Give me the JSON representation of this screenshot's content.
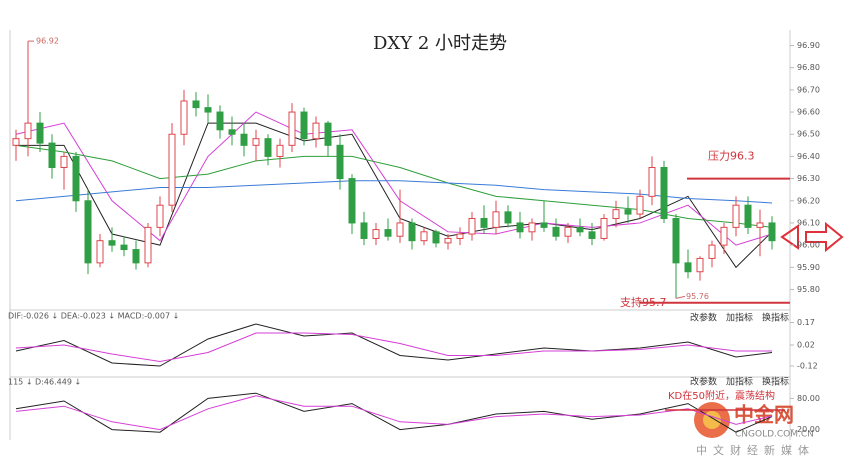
{
  "chart_data": {
    "type": "candlestick",
    "title": "DXY 2 小时走势",
    "up_color": "#e0474c",
    "down_color": "#2f9e44",
    "ylim": [
      95.73,
      96.97
    ],
    "yticks": [
      {
        "value": 96.9,
        "label": "96.90"
      },
      {
        "value": 96.8,
        "label": "96.80"
      },
      {
        "value": 96.7,
        "label": "96.70"
      },
      {
        "value": 96.6,
        "label": "96.60"
      },
      {
        "value": 96.5,
        "label": "96.50"
      },
      {
        "value": 96.4,
        "label": "96.40"
      },
      {
        "value": 96.3,
        "label": "96.30"
      },
      {
        "value": 96.2,
        "label": "96.20"
      },
      {
        "value": 96.1,
        "label": "96.10"
      },
      {
        "value": 96.0,
        "label": "96.00"
      },
      {
        "value": 95.9,
        "label": "95.90"
      },
      {
        "value": 95.8,
        "label": "95.80"
      }
    ],
    "ohlc": [
      [
        96.45,
        96.52,
        96.38,
        96.48
      ],
      [
        96.48,
        96.92,
        96.4,
        96.55
      ],
      [
        96.55,
        96.6,
        96.42,
        96.46
      ],
      [
        96.46,
        96.5,
        96.3,
        96.35
      ],
      [
        96.35,
        96.42,
        96.25,
        96.4
      ],
      [
        96.4,
        96.42,
        96.15,
        96.2
      ],
      [
        96.2,
        96.25,
        95.87,
        95.92
      ],
      [
        95.92,
        96.05,
        95.9,
        96.02
      ],
      [
        96.02,
        96.08,
        95.97,
        96.0
      ],
      [
        96.0,
        96.04,
        95.95,
        95.98
      ],
      [
        95.98,
        96.02,
        95.89,
        95.92
      ],
      [
        95.92,
        96.1,
        95.9,
        96.08
      ],
      [
        96.08,
        96.22,
        96.04,
        96.18
      ],
      [
        96.18,
        96.55,
        96.15,
        96.5
      ],
      [
        96.5,
        96.7,
        96.45,
        96.65
      ],
      [
        96.65,
        96.69,
        96.58,
        96.62
      ],
      [
        96.62,
        96.68,
        96.55,
        96.6
      ],
      [
        96.6,
        96.63,
        96.48,
        96.52
      ],
      [
        96.52,
        96.58,
        96.45,
        96.5
      ],
      [
        96.5,
        96.55,
        96.4,
        96.45
      ],
      [
        96.45,
        96.52,
        96.38,
        96.48
      ],
      [
        96.48,
        96.5,
        96.36,
        96.4
      ],
      [
        96.4,
        96.48,
        96.35,
        96.45
      ],
      [
        96.45,
        96.64,
        96.42,
        96.6
      ],
      [
        96.6,
        96.62,
        96.45,
        96.48
      ],
      [
        96.48,
        96.58,
        96.44,
        96.55
      ],
      [
        96.55,
        96.56,
        96.4,
        96.45
      ],
      [
        96.45,
        96.5,
        96.25,
        96.3
      ],
      [
        96.3,
        96.32,
        96.05,
        96.1
      ],
      [
        96.1,
        96.15,
        96.0,
        96.03
      ],
      [
        96.03,
        96.1,
        96.0,
        96.07
      ],
      [
        96.07,
        96.12,
        96.02,
        96.04
      ],
      [
        96.04,
        96.25,
        96.01,
        96.1
      ],
      [
        96.1,
        96.12,
        95.98,
        96.02
      ],
      [
        96.02,
        96.08,
        96.0,
        96.06
      ],
      [
        96.06,
        96.07,
        95.99,
        96.01
      ],
      [
        96.01,
        96.05,
        95.98,
        96.03
      ],
      [
        96.03,
        96.08,
        96.0,
        96.05
      ],
      [
        96.05,
        96.15,
        96.02,
        96.12
      ],
      [
        96.12,
        96.18,
        96.05,
        96.08
      ],
      [
        96.08,
        96.2,
        96.05,
        96.15
      ],
      [
        96.15,
        96.18,
        96.08,
        96.1
      ],
      [
        96.1,
        96.15,
        96.03,
        96.06
      ],
      [
        96.06,
        96.12,
        96.02,
        96.1
      ],
      [
        96.1,
        96.2,
        96.06,
        96.08
      ],
      [
        96.08,
        96.12,
        96.02,
        96.04
      ],
      [
        96.04,
        96.1,
        96.01,
        96.08
      ],
      [
        96.08,
        96.12,
        96.04,
        96.06
      ],
      [
        96.06,
        96.1,
        96.0,
        96.03
      ],
      [
        96.03,
        96.14,
        96.02,
        96.12
      ],
      [
        96.12,
        96.2,
        96.08,
        96.16
      ],
      [
        96.16,
        96.22,
        96.1,
        96.14
      ],
      [
        96.14,
        96.25,
        96.12,
        96.22
      ],
      [
        96.22,
        96.4,
        96.18,
        96.35
      ],
      [
        96.35,
        96.38,
        96.1,
        96.12
      ],
      [
        96.12,
        96.14,
        95.76,
        95.92
      ],
      [
        95.92,
        95.98,
        95.85,
        95.88
      ],
      [
        95.88,
        95.95,
        95.84,
        95.94
      ],
      [
        95.94,
        96.02,
        95.9,
        96.0
      ],
      [
        96.0,
        96.1,
        95.96,
        96.08
      ],
      [
        96.08,
        96.22,
        96.04,
        96.18
      ],
      [
        96.18,
        96.22,
        96.05,
        96.08
      ],
      [
        96.08,
        96.16,
        95.95,
        96.1
      ],
      [
        96.1,
        96.13,
        95.98,
        96.02
      ]
    ],
    "x": [
      0,
      4,
      8,
      12,
      16,
      20,
      24,
      28,
      32,
      36,
      40,
      44,
      48,
      52,
      56,
      60,
      63
    ],
    "series": [
      {
        "color": "#222222",
        "values": [
          96.45,
          96.45,
          96.05,
          96.0,
          96.55,
          96.55,
          96.47,
          96.5,
          96.12,
          96.04,
          96.08,
          96.1,
          96.07,
          96.12,
          96.22,
          95.9,
          96.06
        ]
      },
      {
        "color": "#d63fd6",
        "values": [
          96.5,
          96.55,
          96.2,
          96.02,
          96.4,
          96.6,
          96.5,
          96.52,
          96.2,
          96.06,
          96.05,
          96.1,
          96.08,
          96.1,
          96.18,
          96.0,
          96.05
        ]
      },
      {
        "color": "#2e9e3a",
        "values": [
          96.45,
          96.42,
          96.38,
          96.3,
          96.32,
          96.38,
          96.4,
          96.4,
          96.35,
          96.28,
          96.22,
          96.2,
          96.18,
          96.16,
          96.12,
          96.1,
          96.08
        ]
      },
      {
        "color": "#3b7bd8",
        "values": [
          96.2,
          96.22,
          96.24,
          96.26,
          96.26,
          96.27,
          96.28,
          96.29,
          96.29,
          96.28,
          96.27,
          96.25,
          96.24,
          96.23,
          96.21,
          96.2,
          96.19
        ]
      }
    ],
    "extremes": [
      96.92,
      95.76
    ],
    "levels": [
      {
        "label": "压力96.3",
        "value": 96.3
      },
      {
        "label": "支持95.7",
        "value": 95.74
      }
    ],
    "macd": {
      "header": "DIF:-0.026 ↓  DEA:-0.023 ↓  MACD:-0.007 ↓",
      "ylim": [
        -0.16,
        0.2
      ],
      "yticks": [
        {
          "value": 0.17,
          "label": "0.17"
        },
        {
          "value": 0.02,
          "label": "0.02"
        },
        {
          "value": -0.12,
          "label": "-0.12"
        }
      ],
      "series": [
        {
          "color": "#222222",
          "values": [
            -0.02,
            0.05,
            -0.1,
            -0.12,
            0.06,
            0.16,
            0.08,
            0.1,
            -0.05,
            -0.08,
            -0.04,
            0.0,
            -0.02,
            0.0,
            0.04,
            -0.06,
            -0.03
          ]
        },
        {
          "color": "#d63fd6",
          "values": [
            0.0,
            0.02,
            -0.04,
            -0.09,
            -0.03,
            0.1,
            0.1,
            0.09,
            0.03,
            -0.05,
            -0.05,
            -0.02,
            -0.02,
            -0.01,
            0.02,
            -0.02,
            -0.02
          ]
        }
      ]
    },
    "kd": {
      "header": "115 ↓  D:46.449 ↓",
      "ylim": [
        0,
        100
      ],
      "yticks": [
        {
          "value": 80,
          "label": "80.00"
        },
        {
          "value": 20,
          "label": "20.00"
        }
      ],
      "series": [
        {
          "color": "#222222",
          "values": [
            60,
            75,
            20,
            15,
            80,
            90,
            55,
            70,
            20,
            30,
            50,
            55,
            40,
            50,
            70,
            15,
            45
          ]
        },
        {
          "color": "#d63fd6",
          "values": [
            55,
            65,
            35,
            20,
            60,
            85,
            65,
            65,
            35,
            30,
            45,
            50,
            45,
            48,
            60,
            30,
            46
          ]
        }
      ],
      "annotation": "KD在50附近，震荡结构"
    },
    "buttons": [
      "改参数",
      "加指标",
      "换指标"
    ],
    "watermark": {
      "logo": "中金网",
      "site": "CNGOLD.COM.CN",
      "slogan": "中文财经新媒体"
    }
  }
}
